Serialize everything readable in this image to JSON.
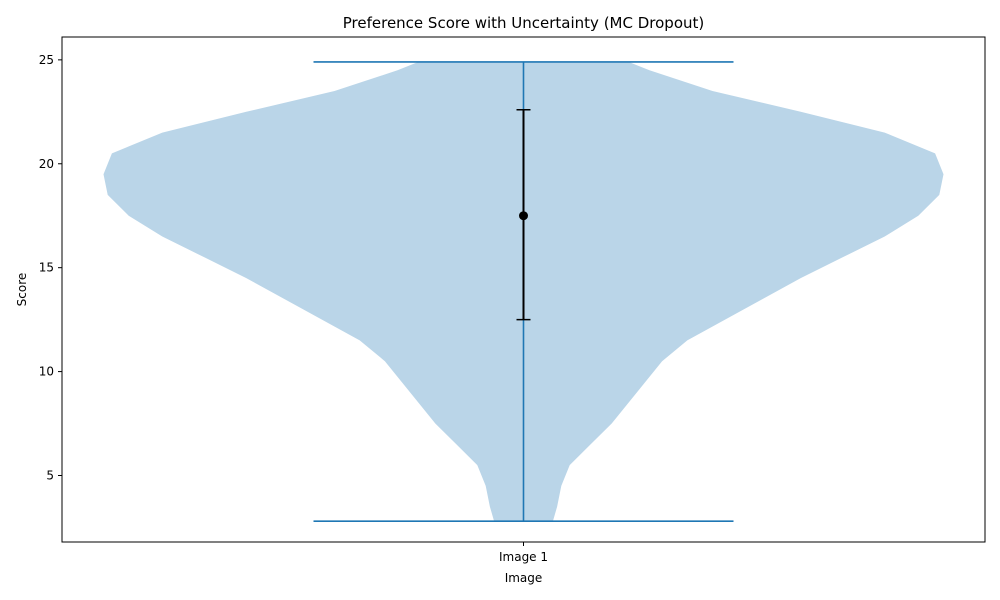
{
  "chart_data": {
    "type": "violin",
    "title": "Preference Score with Uncertainty (MC Dropout)",
    "xlabel": "Image",
    "ylabel": "Score",
    "categories": [
      "Image 1"
    ],
    "ylim": [
      1.8,
      26.1
    ],
    "yticks": [
      5,
      10,
      15,
      20,
      25
    ],
    "grid": false,
    "colors": {
      "violin_fill": "#bad5e8",
      "violin_lines": "#1f77b4",
      "errorbar": "#000000"
    },
    "violins": [
      {
        "name": "Image 1",
        "min": 2.8,
        "max": 24.9,
        "mean": 17.5,
        "error_low": 12.5,
        "error_high": 22.6,
        "density_profile": [
          [
            2.8,
            0.07
          ],
          [
            3.5,
            0.08
          ],
          [
            4.5,
            0.09
          ],
          [
            5.5,
            0.11
          ],
          [
            6.5,
            0.16
          ],
          [
            7.5,
            0.21
          ],
          [
            8.5,
            0.25
          ],
          [
            9.5,
            0.29
          ],
          [
            10.5,
            0.33
          ],
          [
            11.5,
            0.39
          ],
          [
            12.5,
            0.48
          ],
          [
            13.5,
            0.57
          ],
          [
            14.5,
            0.66
          ],
          [
            15.5,
            0.76
          ],
          [
            16.5,
            0.86
          ],
          [
            17.5,
            0.94
          ],
          [
            18.5,
            0.99
          ],
          [
            19.5,
            1.0
          ],
          [
            20.5,
            0.98
          ],
          [
            21.5,
            0.86
          ],
          [
            22.5,
            0.66
          ],
          [
            23.5,
            0.45
          ],
          [
            24.5,
            0.3
          ],
          [
            24.9,
            0.25
          ]
        ]
      }
    ]
  }
}
